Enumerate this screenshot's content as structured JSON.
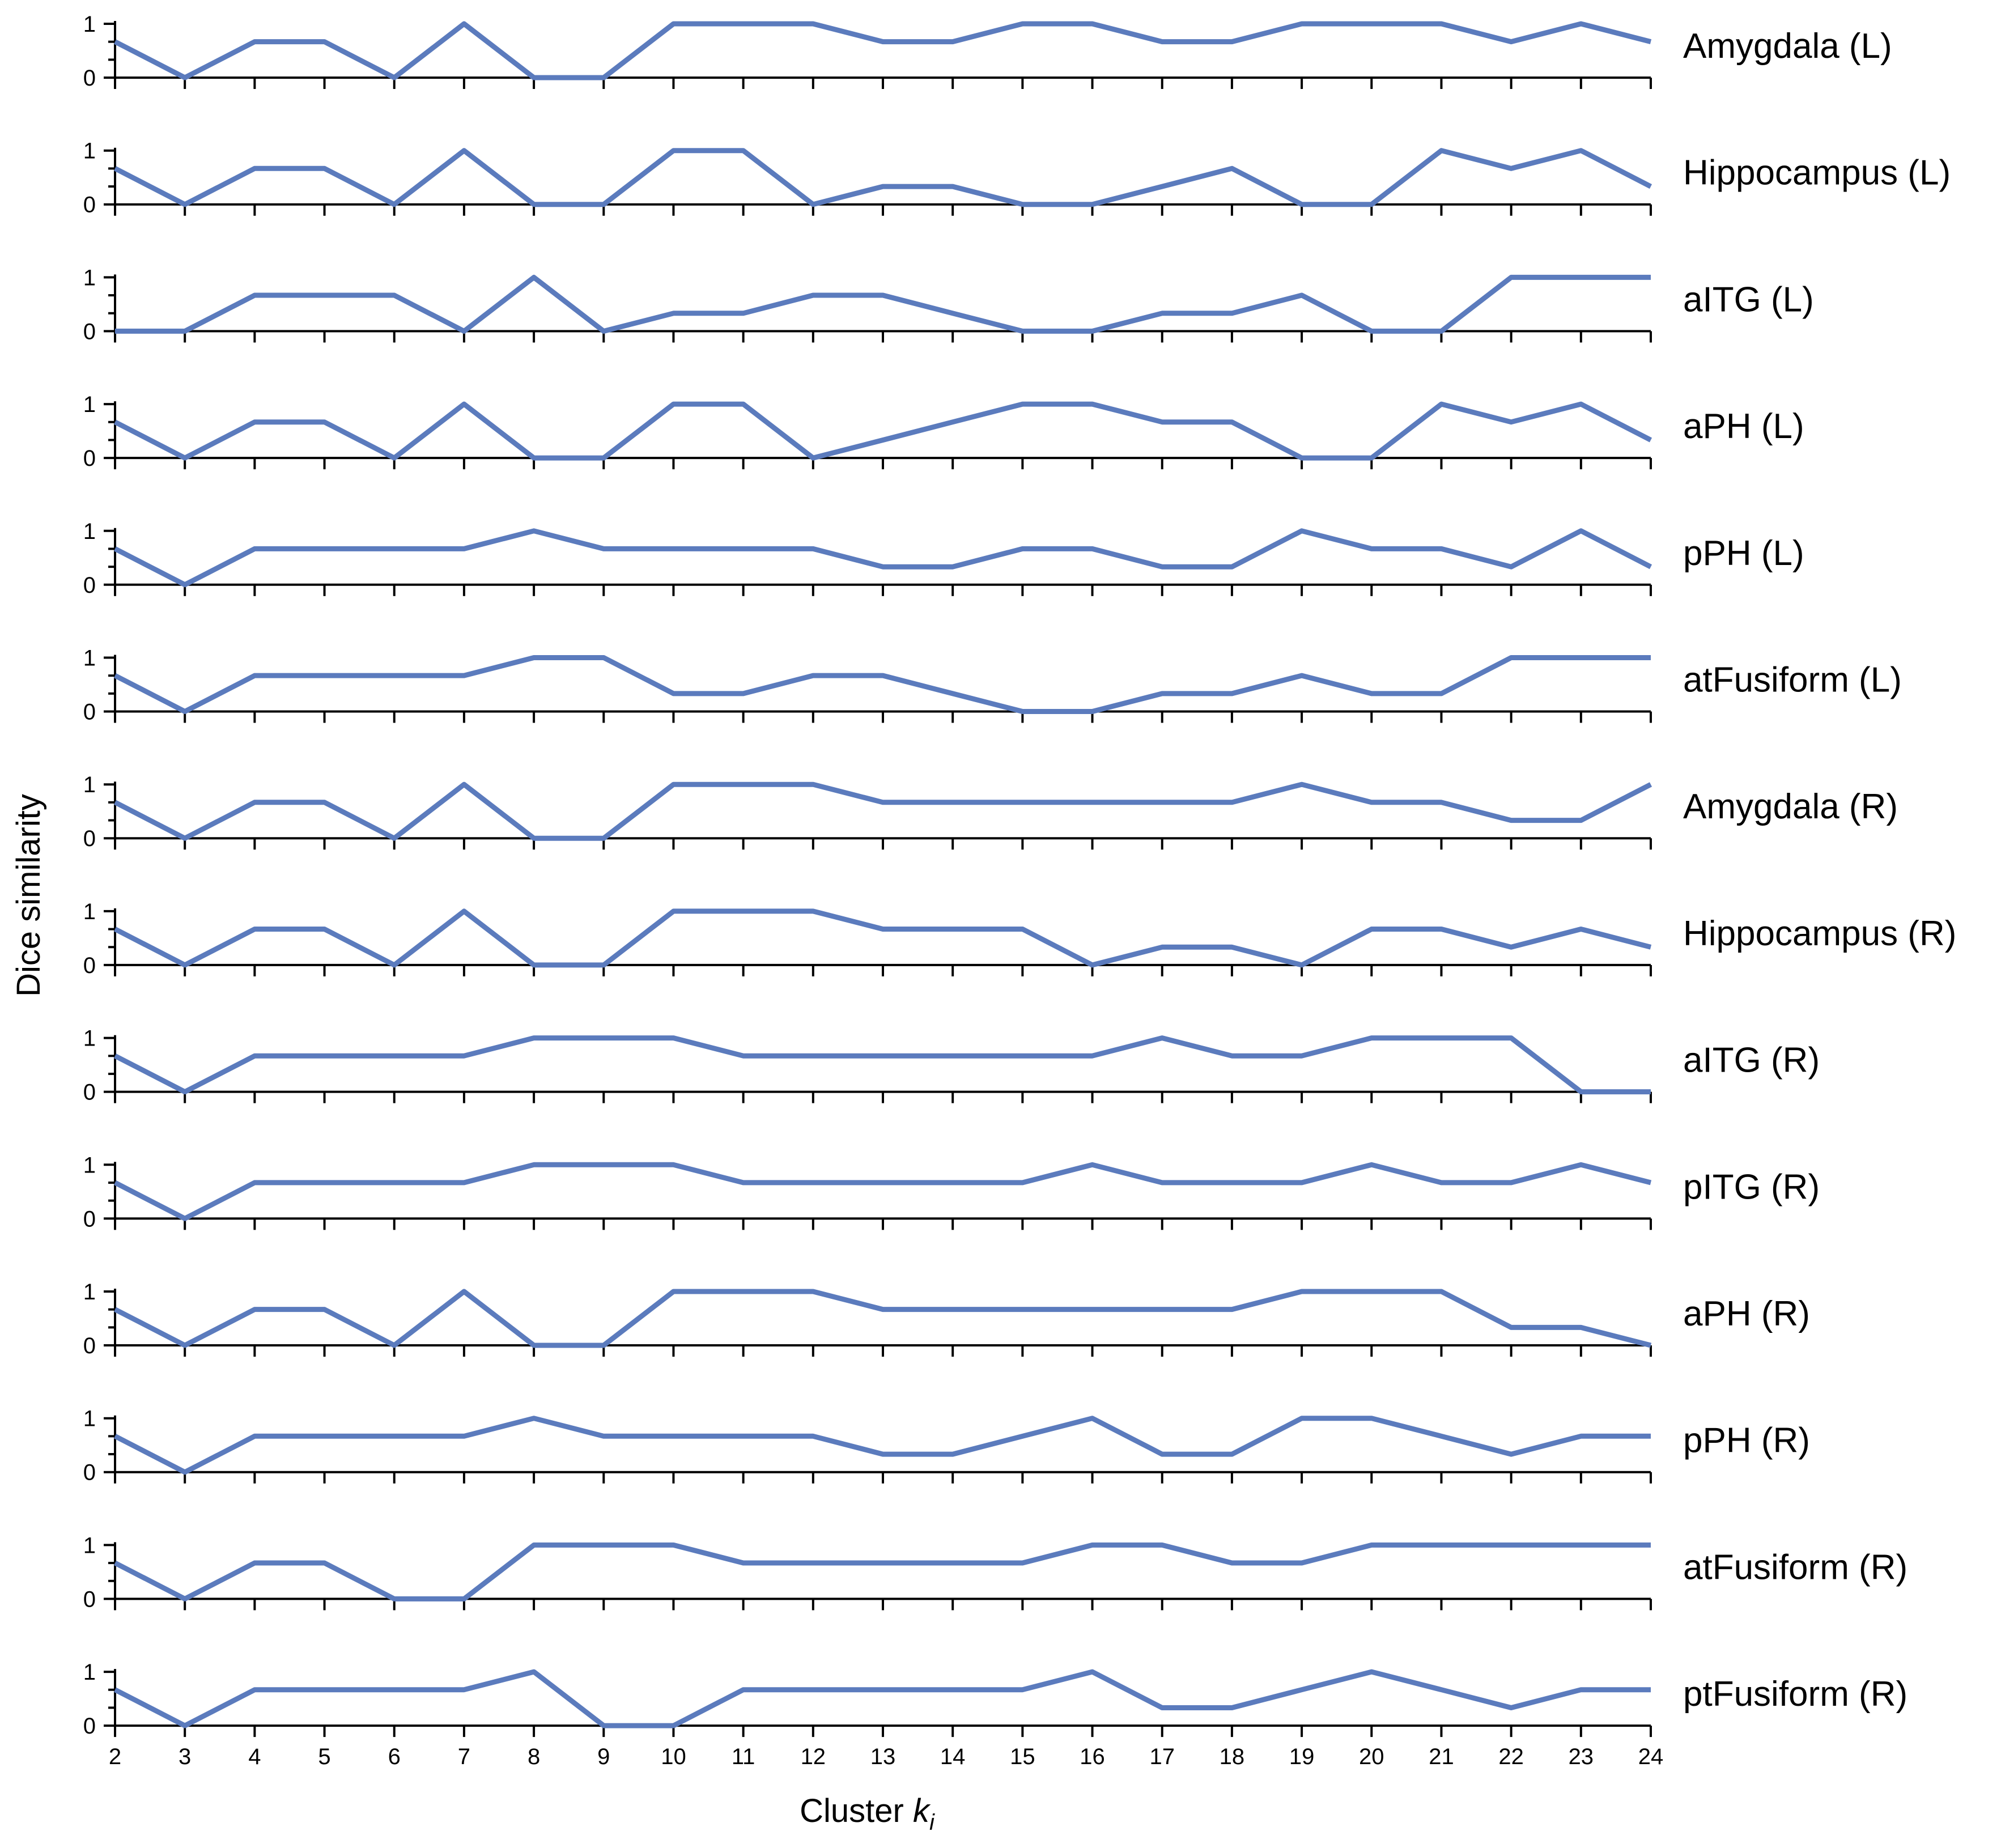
{
  "chart_data": {
    "type": "line",
    "ylabel": "Dice similarity",
    "xlabel": "Cluster",
    "xlabel_var": "k",
    "xlabel_sub": "i",
    "x": [
      2,
      3,
      4,
      5,
      6,
      7,
      8,
      9,
      10,
      11,
      12,
      13,
      14,
      15,
      16,
      17,
      18,
      19,
      20,
      21,
      22,
      23,
      24
    ],
    "xlim": [
      2,
      24
    ],
    "ylim": [
      0,
      1
    ],
    "yticks": [
      0,
      1
    ],
    "line_color": "#5b7bbd",
    "series": [
      {
        "name": "Amygdala (L)",
        "values": [
          0.667,
          0,
          0.667,
          0.667,
          0,
          1,
          0,
          0,
          1,
          1,
          1,
          0.667,
          0.667,
          1,
          1,
          0.667,
          0.667,
          1,
          1,
          1,
          0.667,
          1,
          0.667
        ]
      },
      {
        "name": "Hippocampus (L)",
        "values": [
          0.667,
          0,
          0.667,
          0.667,
          0,
          1,
          0,
          0,
          1,
          1,
          0,
          0.333,
          0.333,
          0,
          0,
          0.333,
          0.667,
          0,
          0,
          1,
          0.667,
          1,
          0.333
        ]
      },
      {
        "name": "aITG (L)",
        "values": [
          0,
          0,
          0.667,
          0.667,
          0.667,
          0,
          1,
          0,
          0.333,
          0.333,
          0.667,
          0.667,
          0.333,
          0,
          0,
          0.333,
          0.333,
          0.667,
          0,
          0,
          1,
          1,
          1
        ]
      },
      {
        "name": "aPH (L)",
        "values": [
          0.667,
          0,
          0.667,
          0.667,
          0,
          1,
          0,
          0,
          1,
          1,
          0,
          0.333,
          0.667,
          1,
          1,
          0.667,
          0.667,
          0,
          0,
          1,
          0.667,
          1,
          0.333
        ]
      },
      {
        "name": "pPH (L)",
        "values": [
          0.667,
          0,
          0.667,
          0.667,
          0.667,
          0.667,
          1,
          0.667,
          0.667,
          0.667,
          0.667,
          0.333,
          0.333,
          0.667,
          0.667,
          0.333,
          0.333,
          1,
          0.667,
          0.667,
          0.333,
          1,
          0.333
        ]
      },
      {
        "name": "atFusiform (L)",
        "values": [
          0.667,
          0,
          0.667,
          0.667,
          0.667,
          0.667,
          1,
          1,
          0.333,
          0.333,
          0.667,
          0.667,
          0.333,
          0,
          0,
          0.333,
          0.333,
          0.667,
          0.333,
          0.333,
          1,
          1,
          1
        ]
      },
      {
        "name": "Amygdala (R)",
        "values": [
          0.667,
          0,
          0.667,
          0.667,
          0,
          1,
          0,
          0,
          1,
          1,
          1,
          0.667,
          0.667,
          0.667,
          0.667,
          0.667,
          0.667,
          1,
          0.667,
          0.667,
          0.333,
          0.333,
          1
        ]
      },
      {
        "name": "Hippocampus (R)",
        "values": [
          0.667,
          0,
          0.667,
          0.667,
          0,
          1,
          0,
          0,
          1,
          1,
          1,
          0.667,
          0.667,
          0.667,
          0,
          0.333,
          0.333,
          0,
          0.667,
          0.667,
          0.333,
          0.667,
          0.333
        ]
      },
      {
        "name": "aITG (R)",
        "values": [
          0.667,
          0,
          0.667,
          0.667,
          0.667,
          0.667,
          1,
          1,
          1,
          0.667,
          0.667,
          0.667,
          0.667,
          0.667,
          0.667,
          1,
          0.667,
          0.667,
          1,
          1,
          1,
          0,
          0
        ]
      },
      {
        "name": "pITG (R)",
        "values": [
          0.667,
          0,
          0.667,
          0.667,
          0.667,
          0.667,
          1,
          1,
          1,
          0.667,
          0.667,
          0.667,
          0.667,
          0.667,
          1,
          0.667,
          0.667,
          0.667,
          1,
          0.667,
          0.667,
          1,
          0.667
        ]
      },
      {
        "name": "aPH (R)",
        "values": [
          0.667,
          0,
          0.667,
          0.667,
          0,
          1,
          0,
          0,
          1,
          1,
          1,
          0.667,
          0.667,
          0.667,
          0.667,
          0.667,
          0.667,
          1,
          1,
          1,
          0.333,
          0.333,
          0
        ]
      },
      {
        "name": "pPH (R)",
        "values": [
          0.667,
          0,
          0.667,
          0.667,
          0.667,
          0.667,
          1,
          0.667,
          0.667,
          0.667,
          0.667,
          0.333,
          0.333,
          0.667,
          1,
          0.333,
          0.333,
          1,
          1,
          0.667,
          0.333,
          0.667,
          0.667
        ]
      },
      {
        "name": "atFusiform (R)",
        "values": [
          0.667,
          0,
          0.667,
          0.667,
          0,
          0,
          1,
          1,
          1,
          0.667,
          0.667,
          0.667,
          0.667,
          0.667,
          1,
          1,
          0.667,
          0.667,
          1,
          1,
          1,
          1,
          1
        ]
      },
      {
        "name": "ptFusiform (R)",
        "values": [
          0.667,
          0,
          0.667,
          0.667,
          0.667,
          0.667,
          1,
          0,
          0,
          0.667,
          0.667,
          0.667,
          0.667,
          0.667,
          1,
          0.333,
          0.333,
          0.667,
          1,
          0.667,
          0.333,
          0.667,
          0.667
        ]
      }
    ]
  }
}
